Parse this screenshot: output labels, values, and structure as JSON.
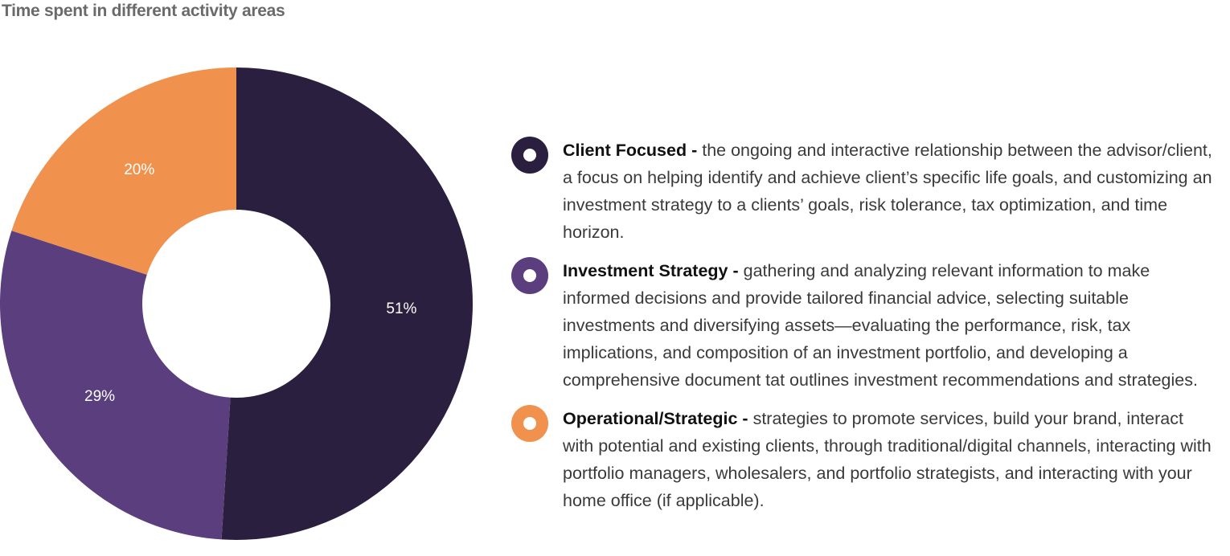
{
  "title": "Time spent in different activity areas",
  "chart_data": {
    "type": "pie",
    "title": "Time spent in different activity areas",
    "slices": [
      {
        "name": "Client Focused",
        "value": 51,
        "label": "51%",
        "color": "#2b1f3f"
      },
      {
        "name": "Investment Strategy",
        "value": 29,
        "label": "29%",
        "color": "#5a3e7e"
      },
      {
        "name": "Operational/Strategic",
        "value": 20,
        "label": "20%",
        "color": "#f0924e"
      }
    ],
    "donut": true,
    "legend_position": "right"
  },
  "legend": [
    {
      "name": "Client Focused",
      "sep": " - ",
      "description": "the ongoing and interactive relationship between the advisor/client, a focus on helping identify and achieve client’s specific life goals, and customizing an investment strategy to a clients’ goals, risk tolerance, tax optimization, and time horizon.",
      "color": "#2b1f3f"
    },
    {
      "name": "Investment Strategy",
      "sep": " - ",
      "description": "gathering and analyzing relevant information to make informed decisions and provide tailored financial advice, selecting suitable investments and diversifying assets—evaluating the performance, risk, tax implications, and composition of an investment portfolio, and developing a comprehensive document tat outlines investment recommendations and strategies.",
      "color": "#5a3e7e"
    },
    {
      "name": "Operational/Strategic",
      "sep": " - ",
      "description": "strategies to promote services, build your brand, interact with potential and existing clients, through traditional/digital channels, interacting with portfolio managers, wholesalers, and portfolio strategists, and interacting with your home office (if applicable).",
      "color": "#f0924e"
    }
  ]
}
